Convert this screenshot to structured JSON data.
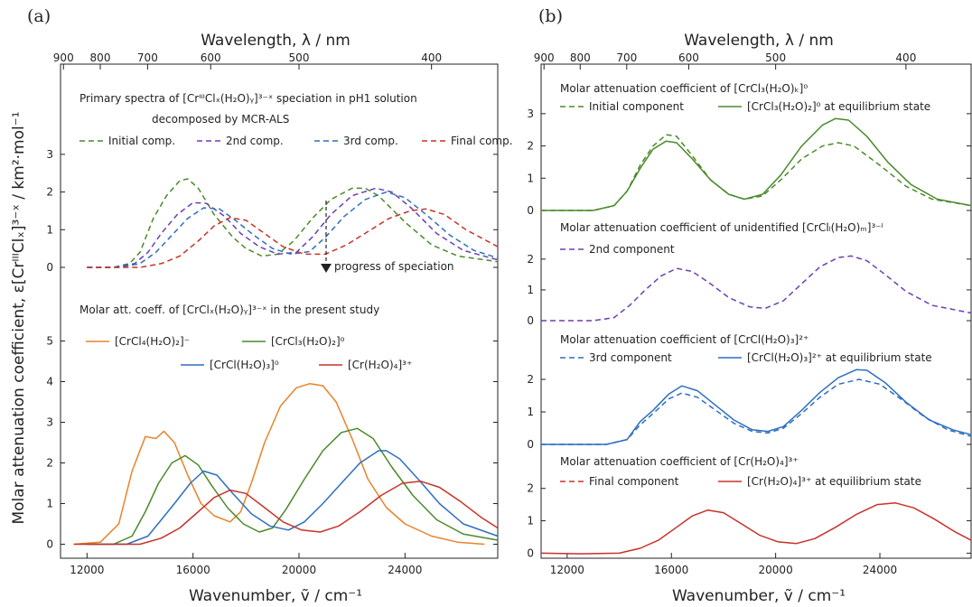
{
  "figure": {
    "panel_a_label": "(a)",
    "panel_b_label": "(b)",
    "top_axis_label": "Wavelength, λ / nm",
    "bottom_axis_label": "Wavenumber, ṽ / cm⁻¹",
    "y_axis_label": "Molar attenuation coefficient, ε[CrᴵᴵᴵClₓ]³⁻ˣ / km²·mol⁻¹"
  },
  "chart_data": [
    {
      "panel": "(a) upper",
      "type": "line",
      "title_line1": "Primary spectra of [CrᴵᴵᴵClₓ(H₂O)ᵧ]³⁻ˣ speciation in pH1 solution",
      "title_line2": "decomposed by MCR-ALS",
      "annotation": "progress of speciation",
      "xlim": [
        11000,
        27500
      ],
      "ylim": [
        0,
        3.5
      ],
      "yticks": [
        0,
        1,
        2,
        3
      ],
      "series": [
        {
          "name": "Initial comp.",
          "color": "#4a8a2a",
          "dash": true,
          "x": [
            12000,
            13000,
            13600,
            14000,
            14500,
            15000,
            15500,
            15800,
            16200,
            16800,
            17500,
            18000,
            18600,
            19200,
            19800,
            20500,
            21200,
            22000,
            22500,
            23000,
            24000,
            25000,
            26000,
            27500
          ],
          "y": [
            0,
            0,
            0.1,
            0.4,
            1.3,
            1.9,
            2.3,
            2.35,
            2.1,
            1.4,
            0.8,
            0.5,
            0.3,
            0.35,
            0.7,
            1.3,
            1.8,
            2.1,
            2.1,
            1.9,
            1.2,
            0.6,
            0.3,
            0.15
          ]
        },
        {
          "name": "2nd comp.",
          "color": "#6a3fb5",
          "dash": true,
          "x": [
            12000,
            13000,
            13800,
            14300,
            14800,
            15400,
            16000,
            16500,
            17200,
            17800,
            18500,
            19200,
            19900,
            20500,
            21200,
            22000,
            22900,
            23500,
            24200,
            25200,
            26200,
            27500
          ],
          "y": [
            0,
            0,
            0.1,
            0.4,
            0.9,
            1.4,
            1.72,
            1.7,
            1.35,
            0.9,
            0.55,
            0.35,
            0.4,
            0.8,
            1.4,
            1.9,
            2.1,
            2.0,
            1.6,
            0.9,
            0.45,
            0.2
          ]
        },
        {
          "name": "3rd comp.",
          "color": "#2d6fbf",
          "dash": true,
          "x": [
            12000,
            13200,
            14000,
            14600,
            15200,
            15800,
            16400,
            17000,
            17600,
            18300,
            19000,
            19700,
            20400,
            21000,
            21700,
            22500,
            23300,
            24000,
            24800,
            25700,
            26600,
            27500
          ],
          "y": [
            0,
            0,
            0.1,
            0.4,
            0.85,
            1.3,
            1.58,
            1.55,
            1.25,
            0.85,
            0.5,
            0.35,
            0.42,
            0.8,
            1.35,
            1.8,
            2.0,
            1.85,
            1.4,
            0.85,
            0.45,
            0.25
          ]
        },
        {
          "name": "Final comp.",
          "color": "#c8322a",
          "dash": true,
          "x": [
            12000,
            14000,
            14800,
            15500,
            16200,
            16800,
            17400,
            18000,
            18700,
            19400,
            20200,
            21000,
            21800,
            22600,
            23400,
            24200,
            24800,
            25500,
            26300,
            27500
          ],
          "y": [
            0,
            0,
            0.1,
            0.3,
            0.7,
            1.1,
            1.32,
            1.25,
            0.9,
            0.55,
            0.35,
            0.35,
            0.6,
            0.95,
            1.3,
            1.5,
            1.55,
            1.4,
            1.0,
            0.55
          ]
        }
      ]
    },
    {
      "panel": "(a) lower",
      "type": "line",
      "title": "Molar att. coeff. of [CrClₓ(H₂O)ᵧ]³⁻ˣ in the present study",
      "xlim": [
        11000,
        27500
      ],
      "ylim": [
        -0.3,
        5.5
      ],
      "yticks": [
        0,
        1,
        2,
        3,
        4,
        5
      ],
      "xticks": [
        12000,
        16000,
        20000,
        24000
      ],
      "series": [
        {
          "name": "[CrCl₄(H₂O)₂]⁻",
          "color": "#e8832a",
          "dash": false,
          "x": [
            11500,
            12500,
            13200,
            13700,
            14200,
            14600,
            14900,
            15300,
            15800,
            16300,
            16800,
            17400,
            17800,
            18200,
            18700,
            19300,
            19900,
            20400,
            20900,
            21400,
            22000,
            22600,
            23300,
            24000,
            25000,
            26000,
            27000
          ],
          "y": [
            0,
            0.05,
            0.5,
            1.8,
            2.65,
            2.6,
            2.78,
            2.5,
            1.7,
            1.0,
            0.7,
            0.55,
            0.8,
            1.5,
            2.5,
            3.4,
            3.85,
            3.95,
            3.9,
            3.5,
            2.6,
            1.6,
            0.9,
            0.5,
            0.2,
            0.05,
            0
          ]
        },
        {
          "name": "[CrCl₃(H₂O)₂]⁰",
          "color": "#4a8a2a",
          "dash": false,
          "x": [
            12000,
            13000,
            13700,
            14200,
            14700,
            15200,
            15700,
            16200,
            16700,
            17300,
            17900,
            18500,
            19000,
            19500,
            20200,
            20900,
            21600,
            22200,
            22800,
            23500,
            24300,
            25200,
            26200,
            27500
          ],
          "y": [
            0,
            0,
            0.2,
            0.8,
            1.5,
            2.0,
            2.18,
            1.95,
            1.45,
            0.9,
            0.5,
            0.3,
            0.4,
            0.85,
            1.6,
            2.3,
            2.75,
            2.85,
            2.6,
            1.9,
            1.2,
            0.6,
            0.25,
            0.1
          ]
        },
        {
          "name": "[CrCl(H₂O)₃]⁰",
          "color": "#2d6fbf",
          "dash": false,
          "x": [
            12000,
            13500,
            14300,
            14800,
            15300,
            15900,
            16400,
            16900,
            17500,
            18200,
            18900,
            19600,
            20200,
            20900,
            21600,
            22300,
            23000,
            23300,
            23800,
            24500,
            25300,
            26200,
            27500
          ],
          "y": [
            0,
            0,
            0.2,
            0.6,
            1.0,
            1.5,
            1.8,
            1.7,
            1.25,
            0.75,
            0.45,
            0.35,
            0.55,
            1.0,
            1.5,
            2.0,
            2.3,
            2.3,
            2.1,
            1.6,
            1.0,
            0.5,
            0.2
          ]
        },
        {
          "name": "[Cr(H₂O)₄]³⁺",
          "color": "#c8322a",
          "dash": false,
          "x": [
            11500,
            14000,
            14800,
            15500,
            16200,
            16800,
            17400,
            18000,
            18700,
            19400,
            20100,
            20800,
            21500,
            22300,
            23100,
            23900,
            24600,
            25300,
            26100,
            26900,
            27500
          ],
          "y": [
            0,
            0,
            0.15,
            0.4,
            0.8,
            1.15,
            1.33,
            1.25,
            0.9,
            0.55,
            0.35,
            0.3,
            0.45,
            0.8,
            1.2,
            1.5,
            1.55,
            1.4,
            1.05,
            0.65,
            0.4
          ]
        }
      ]
    },
    {
      "panel": "(b) 1",
      "type": "line",
      "title": "Molar attenuation coefficient of [CrCl₃(H₂O)ₖ]⁰",
      "xlim": [
        11000,
        27500
      ],
      "ylim": [
        0,
        3.5
      ],
      "yticks": [
        0,
        1,
        2,
        3
      ],
      "series": [
        {
          "name": "Initial component",
          "color": "#4a8a2a",
          "dash": true,
          "x": [
            11000,
            13000,
            13800,
            14300,
            14800,
            15300,
            15800,
            16200,
            16800,
            17500,
            18200,
            18800,
            19500,
            20200,
            21000,
            21800,
            22400,
            23000,
            24000,
            25000,
            26000,
            27500
          ],
          "y": [
            0,
            0,
            0.15,
            0.6,
            1.4,
            2.0,
            2.35,
            2.3,
            1.7,
            0.95,
            0.5,
            0.35,
            0.45,
            0.95,
            1.6,
            2.0,
            2.1,
            2.0,
            1.4,
            0.75,
            0.35,
            0.15
          ]
        },
        {
          "name": "[CrCl₃(H₂O)₂]⁰ at equilibrium state",
          "color": "#4a8a2a",
          "dash": false,
          "x": [
            11000,
            13000,
            13800,
            14300,
            14800,
            15300,
            15800,
            16200,
            16800,
            17500,
            18200,
            18800,
            19500,
            20200,
            21000,
            21800,
            22300,
            22800,
            23500,
            24300,
            25200,
            26200,
            27500
          ],
          "y": [
            0,
            0,
            0.15,
            0.6,
            1.3,
            1.9,
            2.15,
            2.1,
            1.6,
            0.95,
            0.5,
            0.35,
            0.5,
            1.1,
            2.0,
            2.65,
            2.85,
            2.8,
            2.3,
            1.5,
            0.8,
            0.35,
            0.15
          ]
        }
      ]
    },
    {
      "panel": "(b) 2",
      "type": "line",
      "title": "Molar attenuation coefficient of unidentified [CrClₗ(H₂O)ₘ]³⁻ˡ",
      "xlim": [
        11000,
        27500
      ],
      "ylim": [
        0,
        2.7
      ],
      "yticks": [
        0,
        1,
        2
      ],
      "series": [
        {
          "name": "2nd component",
          "color": "#6a3fb5",
          "dash": true,
          "x": [
            11000,
            13000,
            13800,
            14400,
            15000,
            15600,
            16200,
            16800,
            17500,
            18200,
            19000,
            19600,
            20300,
            21000,
            21700,
            22400,
            22900,
            23500,
            24200,
            25000,
            26000,
            27500
          ],
          "y": [
            0,
            0,
            0.1,
            0.5,
            1.0,
            1.45,
            1.7,
            1.6,
            1.2,
            0.75,
            0.45,
            0.4,
            0.65,
            1.2,
            1.75,
            2.05,
            2.1,
            1.95,
            1.5,
            0.95,
            0.5,
            0.25
          ]
        }
      ]
    },
    {
      "panel": "(b) 3",
      "type": "line",
      "title": "Molar attenuation coefficient of [CrCl(H₂O)₃]²⁺",
      "xlim": [
        11000,
        27500
      ],
      "ylim": [
        0,
        3
      ],
      "yticks": [
        0,
        1,
        2
      ],
      "series": [
        {
          "name": "3rd component",
          "color": "#2d6fbf",
          "dash": true,
          "x": [
            11000,
            13500,
            14300,
            14800,
            15300,
            15900,
            16400,
            17000,
            17700,
            18400,
            19100,
            19700,
            20300,
            21000,
            21700,
            22400,
            23200,
            24000,
            24800,
            25700,
            26600,
            27500
          ],
          "y": [
            0,
            0,
            0.15,
            0.6,
            0.95,
            1.4,
            1.58,
            1.45,
            1.05,
            0.65,
            0.4,
            0.35,
            0.5,
            0.95,
            1.45,
            1.85,
            2.0,
            1.85,
            1.4,
            0.85,
            0.45,
            0.25
          ]
        },
        {
          "name": "[CrCl(H₂O)₃]²⁺ at equilibrium state",
          "color": "#2d6fbf",
          "dash": false,
          "x": [
            11000,
            13500,
            14300,
            14800,
            15300,
            15900,
            16400,
            17000,
            17700,
            18400,
            19100,
            19700,
            20300,
            21000,
            21700,
            22400,
            23100,
            23500,
            24200,
            25000,
            25900,
            26800,
            27500
          ],
          "y": [
            0,
            0,
            0.15,
            0.7,
            1.05,
            1.55,
            1.8,
            1.65,
            1.2,
            0.75,
            0.45,
            0.4,
            0.55,
            1.05,
            1.6,
            2.05,
            2.3,
            2.28,
            1.9,
            1.3,
            0.75,
            0.45,
            0.3
          ]
        }
      ]
    },
    {
      "panel": "(b) 4",
      "type": "line",
      "title": "Molar attenuation coefficient of [Cr(H₂O)₄]³⁺",
      "xlim": [
        11000,
        27500
      ],
      "ylim": [
        -0.1,
        2.8
      ],
      "yticks": [
        0,
        1,
        2
      ],
      "xticks": [
        12000,
        16000,
        20000,
        24000
      ],
      "series": [
        {
          "name": "Final component",
          "color": "#c8322a",
          "dash": true,
          "x": [
            11000,
            27500
          ],
          "y": [
            0,
            0
          ],
          "legend_only": true
        },
        {
          "name": "[Cr(H₂O)₄]³⁺ at equilibrium state",
          "color": "#c8322a",
          "dash": false,
          "x": [
            11000,
            12500,
            14000,
            14800,
            15500,
            16200,
            16800,
            17400,
            18000,
            18700,
            19400,
            20100,
            20800,
            21500,
            22300,
            23100,
            23900,
            24600,
            25300,
            26100,
            26900,
            27500
          ],
          "y": [
            0,
            -0.02,
            0,
            0.15,
            0.4,
            0.8,
            1.15,
            1.33,
            1.25,
            0.9,
            0.55,
            0.35,
            0.3,
            0.45,
            0.8,
            1.2,
            1.5,
            1.55,
            1.4,
            1.05,
            0.65,
            0.4
          ]
        }
      ]
    }
  ],
  "top_axis_ticks_nm": [
    "900",
    "800",
    "700",
    "600",
    "500",
    "400"
  ]
}
